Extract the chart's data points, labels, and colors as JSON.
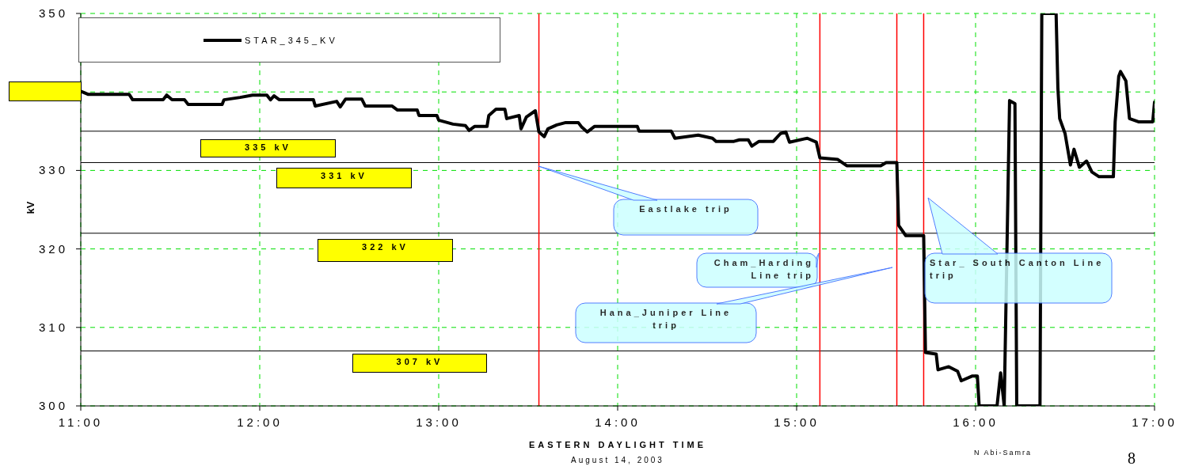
{
  "chart_data": {
    "type": "line",
    "xlabel": "EASTERN DAYLIGHT TIME",
    "ylabel": "kV",
    "annotations": [
      "August 14, 2003",
      "N Abi-Samra",
      "8"
    ],
    "x": [
      11.0,
      11.04,
      11.27,
      11.29,
      11.46,
      11.48,
      11.51,
      11.58,
      11.6,
      11.79,
      11.8,
      11.89,
      11.96,
      12.04,
      12.06,
      12.08,
      12.11,
      12.3,
      12.31,
      12.43,
      12.45,
      12.48,
      12.57,
      12.59,
      12.74,
      12.77,
      12.88,
      12.89,
      12.99,
      13.0,
      13.08,
      13.15,
      13.17,
      13.2,
      13.27,
      13.28,
      13.32,
      13.37,
      13.38,
      13.45,
      13.46,
      13.49,
      13.54,
      13.56,
      13.59,
      13.61,
      13.66,
      13.71,
      13.78,
      13.8,
      13.83,
      13.87,
      14.11,
      14.12,
      14.3,
      14.32,
      14.45,
      14.53,
      14.55,
      14.65,
      14.68,
      14.73,
      14.75,
      14.79,
      14.87,
      14.91,
      14.94,
      14.96,
      15.06,
      15.11,
      15.13,
      15.23,
      15.28,
      15.47,
      15.5,
      15.56,
      15.57,
      15.61,
      15.71,
      15.72,
      15.78,
      15.79,
      15.85,
      15.9,
      15.92,
      15.98,
      16.01,
      16.02,
      16.12,
      16.14,
      16.16,
      16.19,
      16.22,
      16.23,
      16.36,
      16.37,
      16.45,
      16.46,
      16.47,
      16.5,
      16.53,
      16.55,
      16.58,
      16.62,
      16.65,
      16.69,
      16.77,
      16.78,
      16.8,
      16.81,
      16.84,
      16.86,
      16.91,
      16.99,
      17.0
    ],
    "series": [
      {
        "name": "STAR_345_KV",
        "color": "#000000",
        "values": [
          340.1,
          339.7,
          339.7,
          339.0,
          339.0,
          339.6,
          339.0,
          339.0,
          338.4,
          338.4,
          339.0,
          339.3,
          339.6,
          339.6,
          339.0,
          339.5,
          339.0,
          339.0,
          338.2,
          338.8,
          338.1,
          339.1,
          339.1,
          338.2,
          338.2,
          337.7,
          337.7,
          337.0,
          337.0,
          336.4,
          335.9,
          335.7,
          335.1,
          335.6,
          335.6,
          337.0,
          337.8,
          337.8,
          336.6,
          337.0,
          335.3,
          336.8,
          337.6,
          334.9,
          334.3,
          335.3,
          335.8,
          336.1,
          336.1,
          335.5,
          334.9,
          335.6,
          335.6,
          335.0,
          335.0,
          334.1,
          334.5,
          334.1,
          333.7,
          333.7,
          333.9,
          333.9,
          333.1,
          333.7,
          333.7,
          334.7,
          334.9,
          333.6,
          334.1,
          333.6,
          331.6,
          331.4,
          330.6,
          330.6,
          331.0,
          331.0,
          323.0,
          321.7,
          321.7,
          306.8,
          306.6,
          304.6,
          305.0,
          304.4,
          303.2,
          303.8,
          303.8,
          300.0,
          300.0,
          304.2,
          300.0,
          338.9,
          338.5,
          300.0,
          300.0,
          350.0,
          350.0,
          340.5,
          336.6,
          334.7,
          330.7,
          332.7,
          330.4,
          331.2,
          329.8,
          329.2,
          329.2,
          336.2,
          342.0,
          342.6,
          341.4,
          336.6,
          336.2,
          336.2,
          338.7
        ]
      }
    ],
    "xlim": [
      11,
      17
    ],
    "xticks": [
      {
        "value": 11,
        "label": "11:00"
      },
      {
        "value": 12,
        "label": "12:00"
      },
      {
        "value": 13,
        "label": "13:00"
      },
      {
        "value": 14,
        "label": "14:00"
      },
      {
        "value": 15,
        "label": "15:00"
      },
      {
        "value": 16,
        "label": "16:00"
      },
      {
        "value": 17,
        "label": "17:00"
      }
    ],
    "ylim": [
      300,
      350
    ],
    "yticks": [
      300,
      310,
      320,
      330,
      {
        "value": 340,
        "label": null
      },
      350
    ],
    "ref_lines": [
      {
        "axis": "y",
        "value": 335,
        "label": "335 kV",
        "color": "#000000"
      },
      {
        "axis": "y",
        "value": 331,
        "label": "331 kV",
        "color": "#000000"
      },
      {
        "axis": "y",
        "value": 322,
        "label": "322 kV",
        "color": "#000000"
      },
      {
        "axis": "y",
        "value": 307,
        "label": "307 kV",
        "color": "#000000"
      },
      {
        "axis": "x",
        "value": 13.56,
        "label": "Eastlake trip",
        "color": "#ff0000"
      },
      {
        "axis": "x",
        "value": 15.13,
        "label": "Cham_Harding Line trip",
        "color": "#ff0000"
      },
      {
        "axis": "x",
        "value": 15.56,
        "label": "Hana_Juniper Line trip",
        "color": "#ff0000"
      },
      {
        "axis": "x",
        "value": 15.71,
        "label": "Star_ South Canton Line trip",
        "color": "#ff0000"
      }
    ],
    "grid": true,
    "legend": "top left",
    "marker": "none",
    "line_style": "solid"
  }
}
